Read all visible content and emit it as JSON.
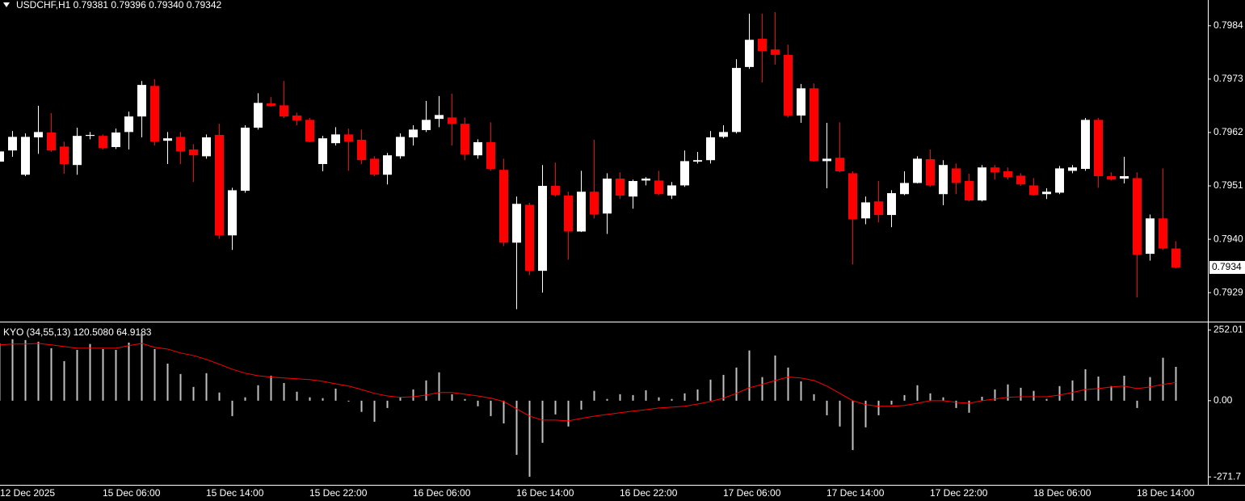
{
  "chart_data": [
    {
      "type": "candlestick",
      "title": "USDCHF,H1  0.79381 0.79396 0.79340 0.79342",
      "categories": [
        "12 Dec 2025",
        null,
        null,
        null,
        null,
        null,
        null,
        null,
        "15 Dec 06:00",
        null,
        null,
        null,
        null,
        null,
        null,
        null,
        "15 Dec 14:00",
        null,
        null,
        null,
        null,
        null,
        null,
        null,
        "15 Dec 22:00",
        null,
        null,
        null,
        null,
        null,
        null,
        null,
        "16 Dec 06:00",
        null,
        null,
        null,
        null,
        null,
        null,
        null,
        "16 Dec 14:00",
        null,
        null,
        null,
        null,
        null,
        null,
        null,
        "16 Dec 22:00",
        null,
        null,
        null,
        null,
        null,
        null,
        null,
        "17 Dec 06:00",
        null,
        null,
        null,
        null,
        null,
        null,
        null,
        "17 Dec 14:00",
        null,
        null,
        null,
        null,
        null,
        null,
        null,
        "17 Dec 22:00",
        null,
        null,
        null,
        null,
        null,
        null,
        null,
        "18 Dec 06:00",
        null,
        null,
        null,
        null,
        null,
        null,
        null,
        "18 Dec 14:00",
        null,
        null,
        null
      ],
      "open": [
        0.7956,
        0.79583,
        0.79533,
        0.7961,
        0.7962,
        0.79591,
        0.79553,
        0.79613,
        0.79613,
        0.7959,
        0.79621,
        0.79653,
        0.79716,
        0.79603,
        0.79611,
        0.79585,
        0.79571,
        0.79615,
        0.79408,
        0.795,
        0.7963,
        0.7968,
        0.79676,
        0.79655,
        0.79646,
        0.79555,
        0.79598,
        0.79616,
        0.79605,
        0.79566,
        0.79533,
        0.79571,
        0.7961,
        0.79625,
        0.79648,
        0.79651,
        0.79638,
        0.79573,
        0.796,
        0.79543,
        0.79393,
        0.79471,
        0.79335,
        0.7951,
        0.7949,
        0.79416,
        0.79498,
        0.79453,
        0.79525,
        0.79488,
        0.79521,
        0.79521,
        0.7949,
        0.79511,
        0.7956,
        0.79563,
        0.79611,
        0.79621,
        0.79755,
        0.79813,
        0.79791,
        0.7978,
        0.79655,
        0.79711,
        0.79561,
        0.79568,
        0.79536,
        0.79443,
        0.79478,
        0.7945,
        0.79493,
        0.79516,
        0.79565,
        0.79493,
        0.79546,
        0.7952,
        0.7948,
        0.79548,
        0.7954,
        0.79531,
        0.79511,
        0.79493,
        0.79496,
        0.79541,
        0.79545,
        0.79646,
        0.7953,
        0.79525,
        0.79526,
        0.7937,
        0.79443,
        0.79381
      ],
      "high": [
        0.79593,
        0.79623,
        0.79618,
        0.79675,
        0.7966,
        0.79601,
        0.7963,
        0.79621,
        0.79616,
        0.79628,
        0.79663,
        0.79726,
        0.7973,
        0.79621,
        0.79621,
        0.79596,
        0.79616,
        0.79638,
        0.79506,
        0.79635,
        0.79701,
        0.79693,
        0.79726,
        0.79661,
        0.7965,
        0.79613,
        0.79631,
        0.79628,
        0.79626,
        0.79571,
        0.79578,
        0.79618,
        0.79635,
        0.79685,
        0.79695,
        0.797,
        0.79651,
        0.79606,
        0.79641,
        0.79566,
        0.79488,
        0.79475,
        0.79553,
        0.79558,
        0.79498,
        0.79541,
        0.79605,
        0.79536,
        0.79538,
        0.79523,
        0.79528,
        0.79541,
        0.79518,
        0.79583,
        0.7958,
        0.79623,
        0.79635,
        0.79771,
        0.79865,
        0.79865,
        0.79868,
        0.79801,
        0.7972,
        0.79721,
        0.7964,
        0.79641,
        0.7954,
        0.79488,
        0.7952,
        0.79501,
        0.7954,
        0.79571,
        0.79585,
        0.79563,
        0.79556,
        0.79535,
        0.79553,
        0.79553,
        0.79548,
        0.79536,
        0.79526,
        0.79505,
        0.79551,
        0.79553,
        0.7965,
        0.7965,
        0.79538,
        0.7957,
        0.79538,
        0.79451,
        0.79546,
        0.79396
      ],
      "low": [
        0.79551,
        0.7957,
        0.7953,
        0.79576,
        0.7958,
        0.79535,
        0.79533,
        0.79606,
        0.79585,
        0.79586,
        0.79585,
        0.7961,
        0.79593,
        0.79555,
        0.79555,
        0.79518,
        0.79566,
        0.79401,
        0.79378,
        0.79496,
        0.79626,
        0.79673,
        0.7965,
        0.79635,
        0.796,
        0.7954,
        0.79593,
        0.79541,
        0.79555,
        0.7953,
        0.79513,
        0.79566,
        0.79593,
        0.79621,
        0.79631,
        0.79593,
        0.79563,
        0.79566,
        0.79541,
        0.79386,
        0.79256,
        0.79326,
        0.7929,
        0.79488,
        0.79358,
        0.79415,
        0.79443,
        0.79411,
        0.79483,
        0.79463,
        0.79511,
        0.79491,
        0.79483,
        0.79508,
        0.79556,
        0.79556,
        0.79608,
        0.79618,
        0.79751,
        0.79723,
        0.7976,
        0.79651,
        0.7964,
        0.7956,
        0.79505,
        0.79538,
        0.79348,
        0.79431,
        0.79435,
        0.79425,
        0.79491,
        0.79515,
        0.79508,
        0.7947,
        0.79493,
        0.79478,
        0.79478,
        0.79523,
        0.79523,
        0.7951,
        0.7949,
        0.79483,
        0.79493,
        0.79536,
        0.79541,
        0.79506,
        0.79521,
        0.79515,
        0.7928,
        0.79356,
        0.79378,
        0.7934
      ],
      "close": [
        0.79581,
        0.79611,
        0.79611,
        0.79621,
        0.79583,
        0.79555,
        0.79613,
        0.79615,
        0.79588,
        0.7962,
        0.79653,
        0.79718,
        0.79601,
        0.79608,
        0.79581,
        0.79573,
        0.7961,
        0.79408,
        0.79501,
        0.7963,
        0.79681,
        0.79675,
        0.79653,
        0.79645,
        0.79601,
        0.79608,
        0.79616,
        0.79601,
        0.79563,
        0.79533,
        0.79573,
        0.79611,
        0.79626,
        0.79646,
        0.79656,
        0.79638,
        0.79575,
        0.796,
        0.79545,
        0.79393,
        0.79473,
        0.79335,
        0.7951,
        0.79491,
        0.79416,
        0.79498,
        0.79451,
        0.79525,
        0.7949,
        0.7952,
        0.79525,
        0.79493,
        0.79511,
        0.79561,
        0.79563,
        0.7961,
        0.79621,
        0.79753,
        0.79811,
        0.79788,
        0.7978,
        0.79655,
        0.79711,
        0.79561,
        0.79566,
        0.7954,
        0.79441,
        0.79476,
        0.7945,
        0.79495,
        0.79516,
        0.79566,
        0.79511,
        0.79553,
        0.79516,
        0.7948,
        0.79548,
        0.79538,
        0.79528,
        0.79513,
        0.79491,
        0.79498,
        0.79546,
        0.79548,
        0.79646,
        0.7953,
        0.79523,
        0.7953,
        0.79368,
        0.79443,
        0.79381,
        0.79342
      ],
      "up_color": "#ffffff",
      "down_color": "#ff0000",
      "ylim": [
        0.79232,
        0.79893
      ],
      "yticks": [
        0.7984,
        0.7973,
        0.7962,
        0.7951,
        {
          "value": 0.794,
          "label": "0.7940"
        },
        0.7929
      ],
      "price_label": "0.7934"
    },
    {
      "type": "histogram",
      "title": "KYO (34,55,13) 120.5080 64.9183",
      "series": [
        {
          "type": "bar",
          "color": "#c0c0c0",
          "values": [
            204,
            219,
            216,
            210,
            187,
            141,
            181,
            202,
            184,
            181,
            207,
            239,
            184,
            132,
            95,
            49,
            98,
            29,
            -55,
            12,
            55,
            89,
            63,
            32,
            12,
            9,
            43,
            -3,
            -40,
            -75,
            -26,
            12,
            40,
            72,
            101,
            23,
            6,
            -20,
            -55,
            -81,
            -193,
            -271,
            -150,
            -49,
            -92,
            -32,
            35,
            6,
            23,
            20,
            37,
            12,
            6,
            26,
            40,
            75,
            92,
            118,
            179,
            84,
            161,
            118,
            69,
            23,
            -52,
            -92,
            -176,
            -95,
            -52,
            -14,
            20,
            55,
            26,
            12,
            -26,
            -43,
            14,
            40,
            58,
            46,
            35,
            6,
            52,
            72,
            112,
            86,
            52,
            89,
            -26,
            84,
            153,
            120.508
          ]
        },
        {
          "type": "line",
          "color": "#ff0000",
          "values": [
            199,
            202,
            202,
            204,
            199,
            193,
            187,
            187,
            187,
            187,
            196,
            204,
            190,
            184,
            170,
            161,
            147,
            130,
            112,
            98,
            89,
            84,
            81,
            78,
            75,
            69,
            60,
            52,
            40,
            26,
            17,
            12,
            14,
            20,
            29,
            29,
            23,
            17,
            9,
            -3,
            -29,
            -55,
            -69,
            -69,
            -72,
            -63,
            -55,
            -49,
            -43,
            -37,
            -32,
            -26,
            -23,
            -20,
            -12,
            -3,
            9,
            26,
            46,
            58,
            72,
            84,
            81,
            72,
            52,
            26,
            0,
            -14,
            -20,
            -20,
            -17,
            -9,
            0,
            0,
            -6,
            -9,
            0,
            6,
            12,
            14,
            14,
            14,
            20,
            29,
            40,
            43,
            49,
            52,
            43,
            49,
            58,
            64.9183
          ]
        }
      ],
      "ylim": [
        -297,
        276
      ],
      "yticks": [
        252.01,
        {
          "value": 0,
          "label": "0.00"
        },
        -271.7
      ]
    }
  ]
}
